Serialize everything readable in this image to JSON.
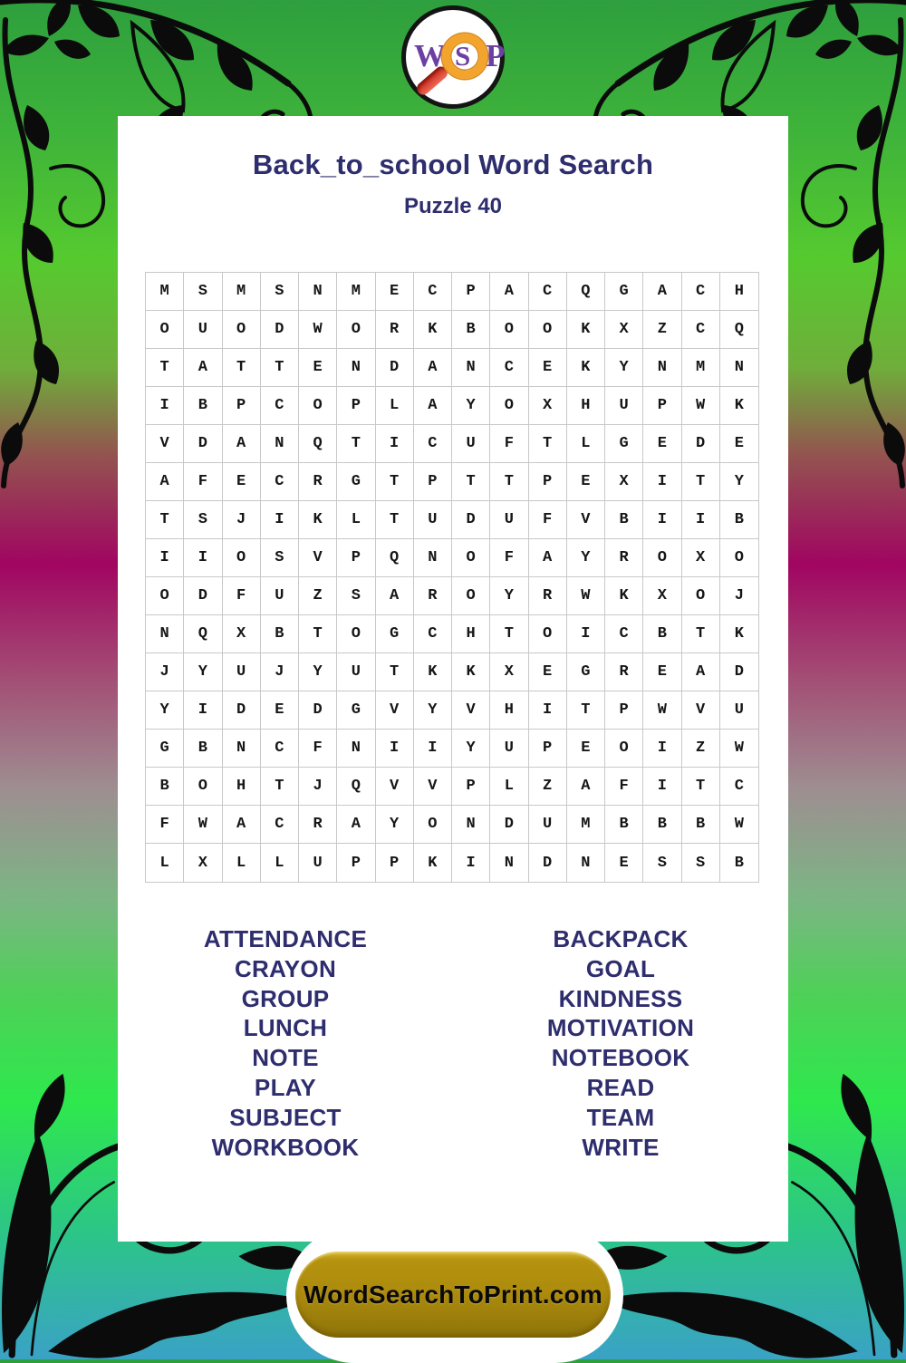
{
  "logo": {
    "letters": {
      "w": "W",
      "s": "S",
      "p": "P"
    }
  },
  "header": {
    "title": "Back_to_school Word Search",
    "subtitle": "Puzzle 40"
  },
  "grid": {
    "size": 16,
    "rows": [
      "MSMSNMECPACQGACH",
      "OUODWORKBOOKXZCQ",
      "TATTENDANCEKYNMN",
      "IBPCOPLAYOXHUPWK",
      "VDANQTICUFTLGEDE",
      "AFECRGTPTTPEXITY",
      "TSJIKLTUDUFVBIIB",
      "IIOSVPQNOFAYROXO",
      "ODFUZSAROYRWKXOJ",
      "NQXBTOGCHTOICBTK",
      "JYUJYUTKKXEGREAD",
      "YIDEDGVYVHITPWVU",
      "GBNCFNIIYUPEOIZW",
      "BOHTJQVVPLZAFITC",
      "FWACRAYONDUMBBBW",
      "LXLLUPPKINDNESSB"
    ]
  },
  "words": {
    "left": [
      "ATTENDANCE",
      "CRAYON",
      "GROUP",
      "LUNCH",
      "NOTE",
      "PLAY",
      "SUBJECT",
      "WORKBOOK"
    ],
    "right": [
      "BACKPACK",
      "GOAL",
      "KINDNESS",
      "MOTIVATION",
      "NOTEBOOK",
      "READ",
      "TEAM",
      "WRITE"
    ]
  },
  "footer": {
    "button_label": "WordSearchToPrint.com"
  },
  "colors": {
    "heading_navy": "#2e2d6e",
    "grid_line": "#c8c8c8",
    "letter_black": "#161616",
    "button_gold": "#ac8b0e",
    "logo_purple": "#6b3fa3",
    "magnifier_orange": "#f3a42c",
    "handle_red": "#c22318",
    "bg_top_green": "#2e9f3d",
    "bg_magenta": "#a10561",
    "bg_bottom_teal": "#3aa2c6"
  }
}
